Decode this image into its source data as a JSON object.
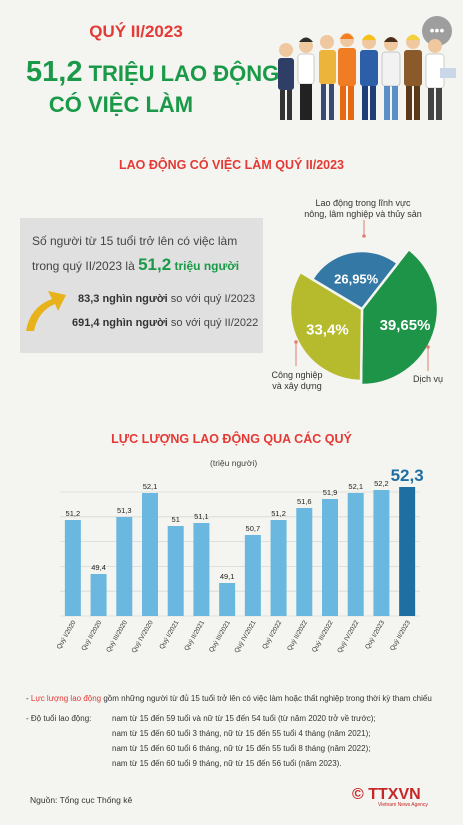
{
  "header": {
    "quarter": "QUÝ II/2023",
    "headline_number": "51,2",
    "headline_rest": " TRIỆU LAO ĐỘNG",
    "headline_line2": "CÓ VIỆC LÀM",
    "more_icon": "more-dots-icon"
  },
  "section1": {
    "title": "LAO ĐỘNG CÓ VIỆC LÀM QUÝ II/2023",
    "info_line1": "Số người từ 15 tuổi trở lên có việc làm",
    "info_line2_prefix": "trong quý II/2023 là ",
    "info_value": "51,2",
    "info_unit": " triệu người",
    "cmp1_value": "83,3 nghìn người",
    "cmp1_text": " so với quý I/2023",
    "cmp2_value": "691,4 nghìn người",
    "cmp2_text": " so với quý II/2022"
  },
  "pie": {
    "slices": [
      {
        "name": "Dịch vụ",
        "label": "39,65%",
        "value": 39.65,
        "color": "#1e9448"
      },
      {
        "name": "Công nghiệp và xây dựng",
        "label": "33,4%",
        "value": 33.4,
        "color": "#b6bb2e"
      },
      {
        "name": "Lao động trong lĩnh vực nông, lâm nghiệp và thủy sản",
        "label": "26,95%",
        "value": 26.95,
        "color": "#3479a6"
      }
    ],
    "note_agri_line1": "Lao động trong lĩnh vực",
    "note_agri_line2": "nông, lâm nghiệp và thủy sản",
    "note_ind_line1": "Công nghiệp",
    "note_ind_line2": "và xây dựng",
    "note_service": "Dịch vụ"
  },
  "section2": {
    "title": "LỰC LƯỢNG LAO ĐỘNG QUA CÁC QUÝ",
    "unit": "(triệu người)"
  },
  "chart_data": {
    "type": "bar",
    "title": "LỰC LƯỢNG LAO ĐỘNG QUA CÁC QUÝ",
    "ylabel": "(triệu người)",
    "categories": [
      "Quý I/2020",
      "Quý II/2020",
      "Quý III/2020",
      "Quý IV/2020",
      "Quý I/2021",
      "Quý II/2021",
      "Quý III/2021",
      "Quý IV/2021",
      "Quý I/2022",
      "Quý II/2022",
      "Quý III/2022",
      "Quý IV/2022",
      "Quý I/2023",
      "Quý II/2023"
    ],
    "values": [
      51.2,
      49.4,
      51.3,
      52.1,
      51,
      51.1,
      49.1,
      50.7,
      51.2,
      51.6,
      51.9,
      52.1,
      52.2,
      52.3
    ],
    "labels": [
      "51,2",
      "49,4",
      "51,3",
      "52,1",
      "51",
      "51,1",
      "49,1",
      "50,7",
      "51,2",
      "51,6",
      "51,9",
      "52,1",
      "52,2",
      "52,3"
    ],
    "ylim": [
      48,
      52.6
    ],
    "colors": {
      "bar": "#6ab8e0",
      "highlight": "#1f6fa3"
    },
    "grid": true
  },
  "footer": {
    "note1_red": "Lực lượng lao động",
    "note1_rest": " gồm những người từ đủ 15 tuổi trở lên có việc làm hoặc thất nghiệp trong thời kỳ tham chiếu",
    "note2_prefix": "Độ tuổi lao động:",
    "note2_lines": [
      "nam từ 15 đến 59 tuổi và nữ từ 15 đến 54 tuổi (từ năm 2020 trở về trước);",
      "nam từ 15 đến 60 tuổi 3 tháng, nữ từ 15 đến 55 tuổi 4 tháng (năm 2021);",
      "nam từ 15 đến 60 tuổi 6 tháng, nữ từ 15 đến 55 tuổi 8 tháng (năm 2022);",
      "nam từ 15 đến 60 tuổi 9 tháng, nữ từ 15 đến 56 tuổi  (năm 2023)."
    ],
    "source": "Nguồn: Tổng cục Thống kê",
    "logo": "© TTXVN",
    "logo_sub": "Vietnam News Agency"
  }
}
